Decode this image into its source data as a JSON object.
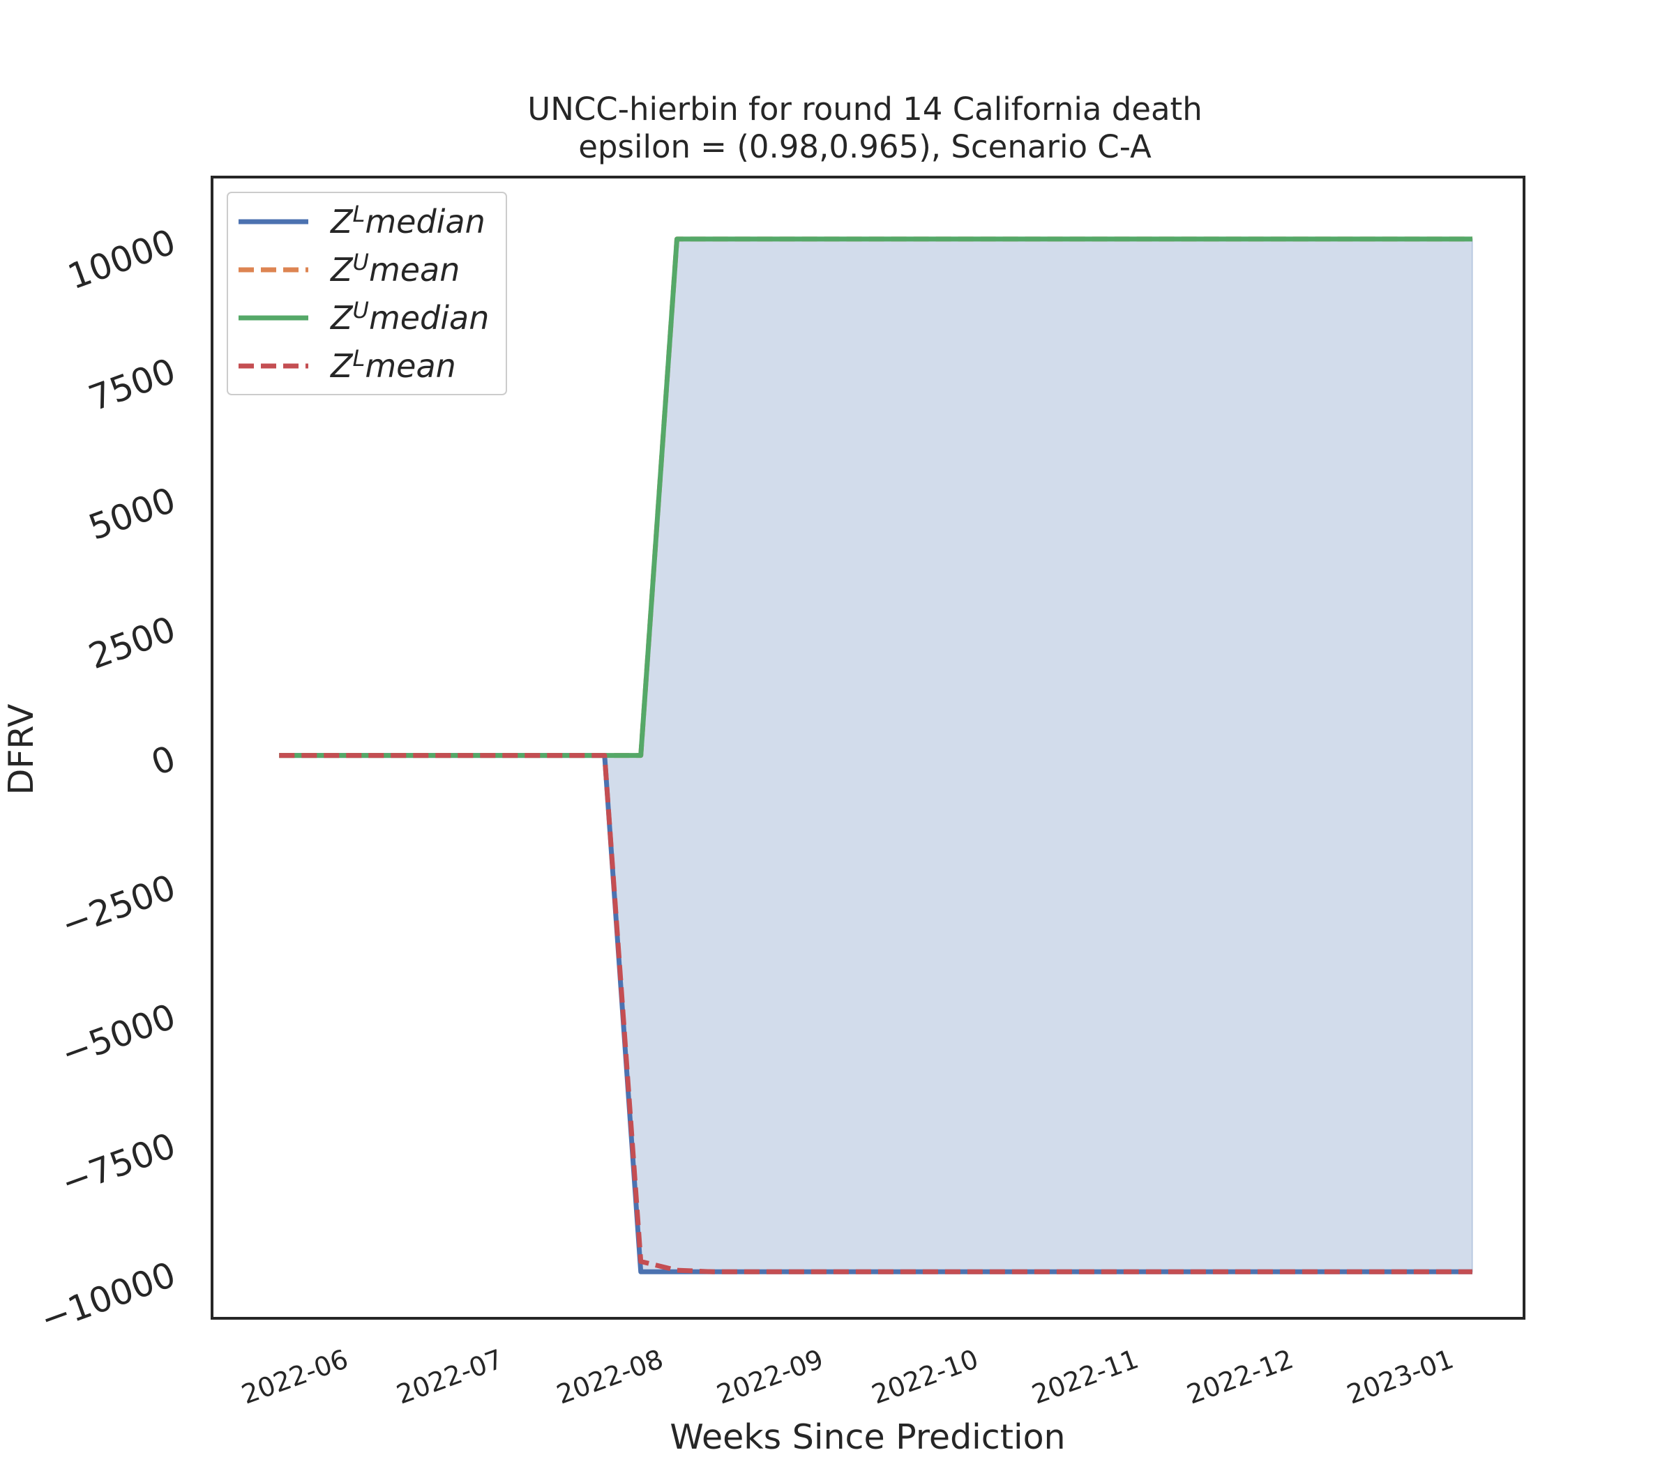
{
  "chart_data": {
    "type": "line",
    "title": "UNCC-hierbin for round 14 California  death",
    "subtitle": "epsilon = (0.98,0.965), Scenario C-A",
    "xlabel": "Weeks Since Prediction",
    "ylabel": "DFRV",
    "ylim": [
      -10900,
      11200
    ],
    "xlim": [
      "2022-05-08",
      "2023-01-17"
    ],
    "x_ticks": [
      "2022-06",
      "2022-07",
      "2022-08",
      "2022-09",
      "2022-10",
      "2022-11",
      "2022-12",
      "2023-01"
    ],
    "y_ticks": [
      10000,
      7500,
      5000,
      2500,
      0,
      -2500,
      -5000,
      -7500,
      -10000
    ],
    "y_tick_labels": [
      "10000",
      "7500",
      "5000",
      "2500",
      "0",
      "−2500",
      "−5000",
      "−7500",
      "−10000"
    ],
    "grid": false,
    "legend_position": "upper-left",
    "x": [
      "2022-05-21",
      "2022-05-28",
      "2022-06-04",
      "2022-06-11",
      "2022-06-18",
      "2022-06-25",
      "2022-07-02",
      "2022-07-09",
      "2022-07-16",
      "2022-07-23",
      "2022-07-30",
      "2022-08-06",
      "2022-08-13",
      "2022-08-20",
      "2022-08-27",
      "2022-09-03",
      "2022-09-10",
      "2022-09-17",
      "2022-09-24",
      "2022-10-01",
      "2022-10-08",
      "2022-10-15",
      "2022-10-22",
      "2022-10-29",
      "2022-11-05",
      "2022-11-12",
      "2022-11-19",
      "2022-11-26",
      "2022-12-03",
      "2022-12-10",
      "2022-12-17",
      "2022-12-24",
      "2022-12-31",
      "2023-01-07"
    ],
    "series": [
      {
        "name": "Z^L median",
        "name_base": "Z",
        "name_sup": "L",
        "name_rest": "median",
        "color": "#4c72b0",
        "style": "solid",
        "values": [
          0,
          0,
          0,
          0,
          0,
          0,
          0,
          0,
          0,
          0,
          -10000,
          -10000,
          -10000,
          -10000,
          -10000,
          -10000,
          -10000,
          -10000,
          -10000,
          -10000,
          -10000,
          -10000,
          -10000,
          -10000,
          -10000,
          -10000,
          -10000,
          -10000,
          -10000,
          -10000,
          -10000,
          -10000,
          -10000,
          -10000
        ]
      },
      {
        "name": "Z^U mean",
        "name_base": "Z",
        "name_sup": "U",
        "name_rest": "mean",
        "color": "#dd8452",
        "style": "dashed",
        "values": [
          0,
          0,
          0,
          0,
          0,
          0,
          0,
          0,
          0,
          0,
          0,
          10000,
          10000,
          10000,
          10000,
          10000,
          10000,
          10000,
          10000,
          10000,
          10000,
          10000,
          10000,
          10000,
          10000,
          10000,
          10000,
          10000,
          10000,
          10000,
          10000,
          10000,
          10000,
          10000
        ]
      },
      {
        "name": "Z^U median",
        "name_base": "Z",
        "name_sup": "U",
        "name_rest": "median",
        "color": "#55a868",
        "style": "solid",
        "values": [
          0,
          0,
          0,
          0,
          0,
          0,
          0,
          0,
          0,
          0,
          0,
          10000,
          10000,
          10000,
          10000,
          10000,
          10000,
          10000,
          10000,
          10000,
          10000,
          10000,
          10000,
          10000,
          10000,
          10000,
          10000,
          10000,
          10000,
          10000,
          10000,
          10000,
          10000,
          10000
        ]
      },
      {
        "name": "Z^L mean",
        "name_base": "Z",
        "name_sup": "L",
        "name_rest": "mean",
        "color": "#c44e52",
        "style": "dashed",
        "values": [
          0,
          0,
          0,
          0,
          0,
          0,
          0,
          0,
          0,
          0,
          -9800,
          -9970,
          -10000,
          -10000,
          -10000,
          -10000,
          -10000,
          -10000,
          -10000,
          -10000,
          -10000,
          -10000,
          -10000,
          -10000,
          -10000,
          -10000,
          -10000,
          -10000,
          -10000,
          -10000,
          -10000,
          -10000,
          -10000,
          -10000
        ]
      }
    ],
    "fill_between": {
      "lower_series": "Z^L median",
      "upper_series": "Z^U median",
      "color": "#4c72b0",
      "opacity": 0.25
    }
  }
}
